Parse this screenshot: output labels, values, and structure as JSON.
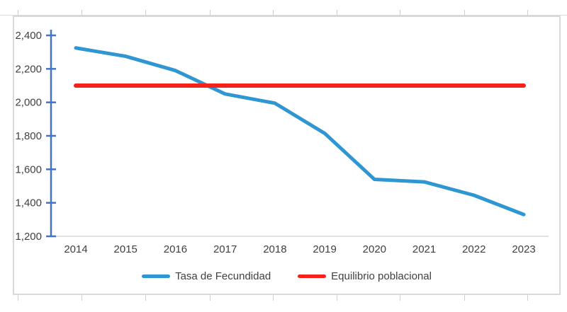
{
  "colors": {
    "series_blue": "#2e96d2",
    "series_red": "#f5221b",
    "axis_blue": "#4472c4",
    "axis_gray": "#d9d9d9",
    "text_gray": "#404040"
  },
  "chart_data": {
    "type": "line",
    "title": "",
    "categories": [
      "2014",
      "2015",
      "2016",
      "2017",
      "2018",
      "2019",
      "2020",
      "2021",
      "2022",
      "2023"
    ],
    "series": [
      {
        "name": "Tasa de Fecundidad",
        "color": "#2e96d2",
        "values": [
          2325,
          2275,
          2190,
          2050,
          1995,
          1815,
          1540,
          1525,
          1445,
          1330
        ]
      },
      {
        "name": "Equilibrio poblacional",
        "color": "#f5221b",
        "values": [
          2100,
          2100,
          2100,
          2100,
          2100,
          2100,
          2100,
          2100,
          2100,
          2100
        ]
      }
    ],
    "ylim": [
      1200,
      2400
    ],
    "ytick_step": 200,
    "ytick_labels_top_to_bottom": [
      "2,400",
      "2,200",
      "2,000",
      "1,800",
      "1,600",
      "1,400",
      "1,200"
    ],
    "grid": false,
    "legend_position": "bottom"
  }
}
